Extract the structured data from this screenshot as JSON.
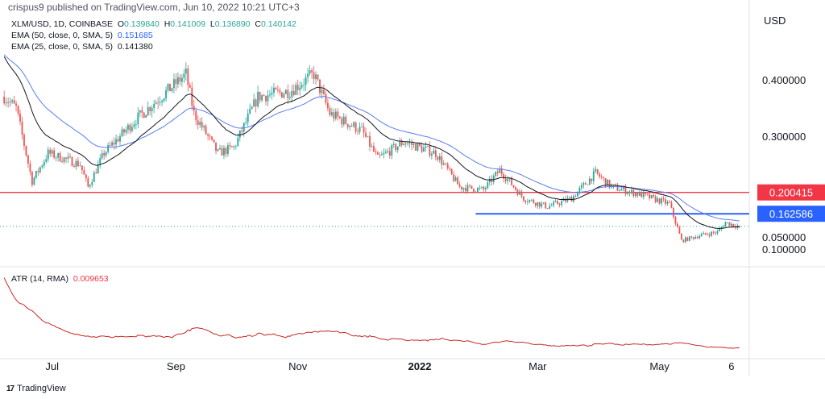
{
  "header": {
    "publisher": "crispus9 published on TradingView.com, Jun 10, 2022 10:21 UTC+3"
  },
  "legend": {
    "symbol": "XLM/USD, 1D, COINBASE",
    "o_label": "O",
    "o": "0.139840",
    "h_label": "H",
    "h": "0.141009",
    "l_label": "L",
    "l": "0.136890",
    "c_label": "C",
    "c": "0.140142",
    "ema50_label": "EMA (50, close, 0, SMA, 5)",
    "ema50": "0.151685",
    "ema25_label": "EMA (25, close, 0, SMA, 5)",
    "ema25": "0.141380",
    "atr_label": "ATR (14, RMA)",
    "atr": "0.009653"
  },
  "footer": {
    "logo_text": "TradingView"
  },
  "colors": {
    "up": "#26a69a",
    "down": "#ef5350",
    "ema50": "#5b7cf0",
    "ema25": "#131722",
    "atr": "#c62828",
    "support": "#f23645",
    "resistance": "#2962ff"
  },
  "chart_data": {
    "type": "candlestick",
    "symbol": "XLM/USD",
    "interval": "1D",
    "currency": "USD",
    "price_ticks": [
      "0.400000",
      "0.300000",
      "0.100000"
    ],
    "atr_ticks": [
      "0.050000"
    ],
    "x_ticks": [
      "Jul",
      "Sep",
      "Nov",
      "2022",
      "Mar",
      "May",
      "6"
    ],
    "x_tick_dates": [
      "2021-07-01",
      "2021-09-01",
      "2021-11-01",
      "2022-01-01",
      "2022-03-01",
      "2022-05-01",
      "2022-06-06"
    ],
    "hlines": [
      {
        "label": "0.200415",
        "value": 0.200415,
        "from": "2021-06-01"
      },
      {
        "label": "0.162586",
        "value": 0.162586,
        "from": "2022-01-29"
      }
    ],
    "last_price": 0.140142,
    "close_keypoints": [
      [
        "2021-06-07",
        0.37
      ],
      [
        "2021-06-13",
        0.35
      ],
      [
        "2021-06-21",
        0.22
      ],
      [
        "2021-06-29",
        0.27
      ],
      [
        "2021-07-15",
        0.25
      ],
      [
        "2021-07-19",
        0.21
      ],
      [
        "2021-07-27",
        0.27
      ],
      [
        "2021-08-12",
        0.33
      ],
      [
        "2021-09-06",
        0.41
      ],
      [
        "2021-09-10",
        0.34
      ],
      [
        "2021-09-22",
        0.27
      ],
      [
        "2021-09-30",
        0.28
      ],
      [
        "2021-10-12",
        0.37
      ],
      [
        "2021-10-28",
        0.38
      ],
      [
        "2021-11-09",
        0.41
      ],
      [
        "2021-11-17",
        0.34
      ],
      [
        "2021-12-03",
        0.31
      ],
      [
        "2021-12-11",
        0.26
      ],
      [
        "2021-12-24",
        0.29
      ],
      [
        "2022-01-09",
        0.27
      ],
      [
        "2022-01-21",
        0.21
      ],
      [
        "2022-02-02",
        0.205
      ],
      [
        "2022-02-10",
        0.24
      ],
      [
        "2022-02-22",
        0.19
      ],
      [
        "2022-03-06",
        0.175
      ],
      [
        "2022-03-18",
        0.19
      ],
      [
        "2022-03-30",
        0.235
      ],
      [
        "2022-04-07",
        0.21
      ],
      [
        "2022-04-23",
        0.195
      ],
      [
        "2022-05-06",
        0.18
      ],
      [
        "2022-05-12",
        0.115
      ],
      [
        "2022-05-22",
        0.125
      ],
      [
        "2022-05-30",
        0.13
      ],
      [
        "2022-06-03",
        0.147
      ],
      [
        "2022-06-10",
        0.14
      ]
    ]
  }
}
